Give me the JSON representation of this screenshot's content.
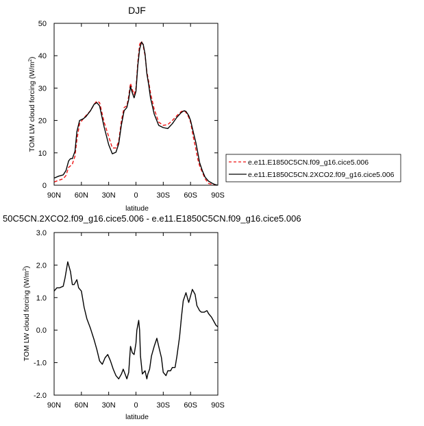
{
  "chart_data": [
    {
      "type": "line",
      "title": "DJF",
      "xlabel": "latitude",
      "ylabel": "TOM LW cloud forcing (W/m",
      "ylabel_sup": "2",
      "ylabel_close": ")",
      "xlim": [
        -90,
        90
      ],
      "ylim": [
        0,
        50
      ],
      "x_ticks": [
        -90,
        -60,
        -30,
        0,
        30,
        60,
        90
      ],
      "x_tick_labels": [
        "90N",
        "60N",
        "30N",
        "0",
        "30S",
        "60S",
        "90S"
      ],
      "y_ticks": [
        0,
        10,
        20,
        30,
        40,
        50
      ],
      "y_tick_labels": [
        "0",
        "10",
        "20",
        "30",
        "40",
        "50"
      ],
      "legend_position": "right",
      "series": [
        {
          "name": "e.e11.E1850C5CN.f09_g16.cice5.006",
          "color": "#ee1111",
          "dash": "dashed",
          "x": [
            -90,
            -85,
            -80,
            -77,
            -74,
            -72,
            -70,
            -67,
            -65,
            -62,
            -58,
            -55,
            -50,
            -46,
            -43,
            -40,
            -35,
            -30,
            -26,
            -22,
            -19,
            -16,
            -13,
            -10,
            -8,
            -6,
            -4,
            -2,
            0,
            2,
            4,
            6,
            8,
            10,
            12,
            14,
            16,
            20,
            25,
            30,
            35,
            40,
            45,
            50,
            53,
            55,
            58,
            60,
            63,
            66,
            68,
            70,
            73,
            76,
            80,
            84,
            87,
            90
          ],
          "y": [
            1,
            1.5,
            2,
            3,
            5.5,
            6,
            6.5,
            9,
            14,
            19,
            20.5,
            21.5,
            23,
            25,
            26,
            25.5,
            19.5,
            15,
            11.5,
            11.5,
            13.5,
            20,
            24,
            24.5,
            27.5,
            31.5,
            29.5,
            28,
            30,
            38,
            43.5,
            44.5,
            43,
            40,
            35,
            32,
            28.5,
            23.5,
            19.5,
            18.5,
            18.7,
            20,
            21.5,
            22.8,
            23,
            22.5,
            21,
            19.5,
            15,
            11,
            8,
            6,
            4,
            2,
            0.5,
            0.3,
            0.1,
            0
          ]
        },
        {
          "name": "e.e11.E1850C5CN.2XCO2.f09_g16.cice5.006",
          "color": "#000000",
          "dash": "solid",
          "x": [
            -90,
            -85,
            -80,
            -77,
            -74,
            -72,
            -70,
            -67,
            -65,
            -62,
            -58,
            -55,
            -50,
            -46,
            -43,
            -40,
            -35,
            -30,
            -26,
            -22,
            -19,
            -16,
            -13,
            -10,
            -8,
            -6,
            -4,
            -2,
            0,
            2,
            4,
            6,
            8,
            10,
            12,
            14,
            16,
            20,
            25,
            30,
            35,
            40,
            45,
            50,
            53,
            55,
            58,
            60,
            63,
            66,
            68,
            70,
            73,
            76,
            80,
            84,
            87,
            90
          ],
          "y": [
            2.2,
            2.8,
            3.2,
            4.5,
            7.5,
            8.2,
            8.2,
            10.5,
            16.5,
            20,
            20.5,
            21.2,
            23,
            25,
            25.5,
            24.5,
            18,
            12.5,
            9.7,
            10.2,
            12.8,
            18.7,
            23,
            24,
            26.5,
            30.5,
            28.5,
            27,
            29,
            37,
            42,
            44.2,
            43.5,
            40.5,
            34.5,
            31,
            27,
            22,
            18.5,
            17.8,
            17.5,
            19,
            21,
            22.5,
            23,
            22.8,
            21.5,
            20,
            16.5,
            13,
            10,
            7,
            4.5,
            2.5,
            1.2,
            0.6,
            0.2,
            0
          ]
        }
      ]
    },
    {
      "type": "line",
      "title": "50C5CN.2XCO2.f09_g16.cice5.006 - e.e11.E1850C5CN.f09_g16.cice5.006",
      "xlabel": "latitude",
      "ylabel": "TOM LW cloud forcing (W/m",
      "ylabel_sup": "2",
      "ylabel_close": ")",
      "xlim": [
        -90,
        90
      ],
      "ylim": [
        -2,
        3
      ],
      "x_ticks": [
        -90,
        -60,
        -30,
        0,
        30,
        60,
        90
      ],
      "x_tick_labels": [
        "90N",
        "60N",
        "30N",
        "0",
        "30S",
        "60S",
        "90S"
      ],
      "y_ticks": [
        -2,
        -1,
        0,
        1,
        2,
        3
      ],
      "y_tick_labels": [
        "-2.0",
        "-1.0",
        "0.0",
        "1.0",
        "2.0",
        "3.0"
      ],
      "series": [
        {
          "color": "#000000",
          "dash": "solid",
          "x": [
            -90,
            -87,
            -84,
            -80,
            -78,
            -75,
            -72,
            -70,
            -68,
            -65,
            -63,
            -60,
            -57,
            -54,
            -50,
            -46,
            -43,
            -40,
            -37,
            -34,
            -31,
            -28,
            -25,
            -22,
            -19,
            -16,
            -14,
            -12,
            -10,
            -8,
            -6,
            -4,
            -2,
            0,
            1,
            3,
            4,
            5,
            7,
            10,
            12,
            13,
            15,
            17,
            20,
            23,
            25,
            28,
            30,
            33,
            35,
            38,
            40,
            43,
            45,
            48,
            50,
            52,
            55,
            58,
            60,
            62,
            65,
            67,
            70,
            72,
            75,
            78,
            80,
            83,
            86,
            88,
            90
          ],
          "y": [
            1.2,
            1.3,
            1.3,
            1.35,
            1.6,
            2.1,
            1.8,
            1.4,
            1.4,
            1.55,
            1.3,
            1.2,
            0.7,
            0.35,
            0.05,
            -0.3,
            -0.6,
            -0.95,
            -1.05,
            -0.85,
            -0.75,
            -0.95,
            -1.2,
            -1.4,
            -1.5,
            -1.35,
            -1.2,
            -1.35,
            -1.5,
            -1.3,
            -0.5,
            -0.7,
            -0.75,
            -0.4,
            0.0,
            0.3,
            0.0,
            -0.8,
            -1.35,
            -1.25,
            -1.5,
            -1.35,
            -1.2,
            -0.8,
            -0.5,
            -0.25,
            -0.5,
            -0.85,
            -1.3,
            -1.4,
            -1.25,
            -1.25,
            -1.15,
            -1.15,
            -0.8,
            -0.2,
            0.4,
            0.9,
            1.15,
            0.85,
            1.05,
            1.25,
            1.1,
            0.75,
            0.6,
            0.55,
            0.55,
            0.6,
            0.5,
            0.4,
            0.25,
            0.15,
            0.1
          ]
        }
      ]
    }
  ]
}
